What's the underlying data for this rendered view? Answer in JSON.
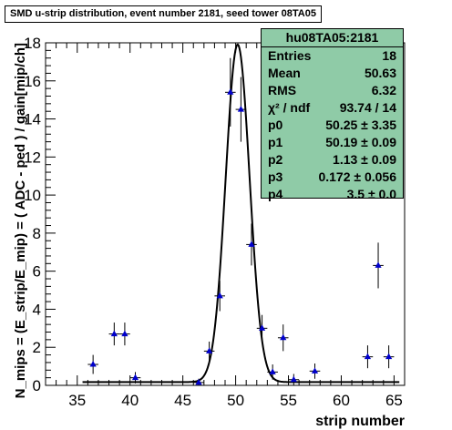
{
  "title": "SMD u-strip distribution, event number 2181, seed tower 08TA05",
  "stats": {
    "title": "hu08TA05:2181",
    "rows": [
      {
        "label": "Entries",
        "value": "18"
      },
      {
        "label": "Mean",
        "value": "50.63"
      },
      {
        "label": "RMS",
        "value": "6.32"
      },
      {
        "label": "χ² / ndf",
        "value": "93.74 / 14"
      },
      {
        "label": "p0",
        "value": "50.25 ± 3.35"
      },
      {
        "label": "p1",
        "value": "50.19 ± 0.09"
      },
      {
        "label": "p2",
        "value": "1.13 ± 0.09"
      },
      {
        "label": "p3",
        "value": "0.172 ± 0.056"
      },
      {
        "label": "p4",
        "value": "3.5 ± 0.0"
      }
    ]
  },
  "colors": {
    "stats_bg": "#8fcba7",
    "marker": "#0000cc",
    "curve": "#000000"
  },
  "chart_data": {
    "type": "scatter",
    "xlabel": "strip number",
    "ylabel": "N_mips = (E_strip/E_mip) = ( ADC - ped ) / gain[mip/ch]",
    "xlim": [
      32,
      66
    ],
    "ylim": [
      0,
      18
    ],
    "xticks": [
      35,
      40,
      45,
      50,
      55,
      60,
      65
    ],
    "yticks": [
      0,
      2,
      4,
      6,
      8,
      10,
      12,
      14,
      16,
      18
    ],
    "grid": false,
    "series": [
      {
        "marker": "triangle",
        "points": [
          {
            "x": 36.5,
            "y": 1.1,
            "err": 0.5
          },
          {
            "x": 38.5,
            "y": 2.7,
            "err": 0.6
          },
          {
            "x": 39.5,
            "y": 2.7,
            "err": 0.6
          },
          {
            "x": 40.5,
            "y": 0.4,
            "err": 0.3
          },
          {
            "x": 46.5,
            "y": 0.15,
            "err": 0.2
          },
          {
            "x": 47.5,
            "y": 1.8,
            "err": 0.5
          },
          {
            "x": 48.5,
            "y": 4.7,
            "err": 0.8
          },
          {
            "x": 49.5,
            "y": 15.4,
            "err": 1.8
          },
          {
            "x": 50.5,
            "y": 14.5,
            "err": 1.7
          },
          {
            "x": 51.5,
            "y": 7.4,
            "err": 1.1
          },
          {
            "x": 52.5,
            "y": 3.0,
            "err": 0.7
          },
          {
            "x": 53.5,
            "y": 0.7,
            "err": 0.4
          },
          {
            "x": 54.5,
            "y": 2.5,
            "err": 0.7
          },
          {
            "x": 55.5,
            "y": 0.3,
            "err": 0.3
          },
          {
            "x": 57.5,
            "y": 0.75,
            "err": 0.4
          },
          {
            "x": 62.5,
            "y": 1.5,
            "err": 0.6
          },
          {
            "x": 63.5,
            "y": 6.3,
            "err": 1.2
          },
          {
            "x": 64.5,
            "y": 1.5,
            "err": 0.6
          }
        ]
      }
    ],
    "fit": {
      "p0": 50.25,
      "p1": 50.19,
      "p2": 1.13,
      "p3": 0.172,
      "p4": 3.5
    }
  }
}
